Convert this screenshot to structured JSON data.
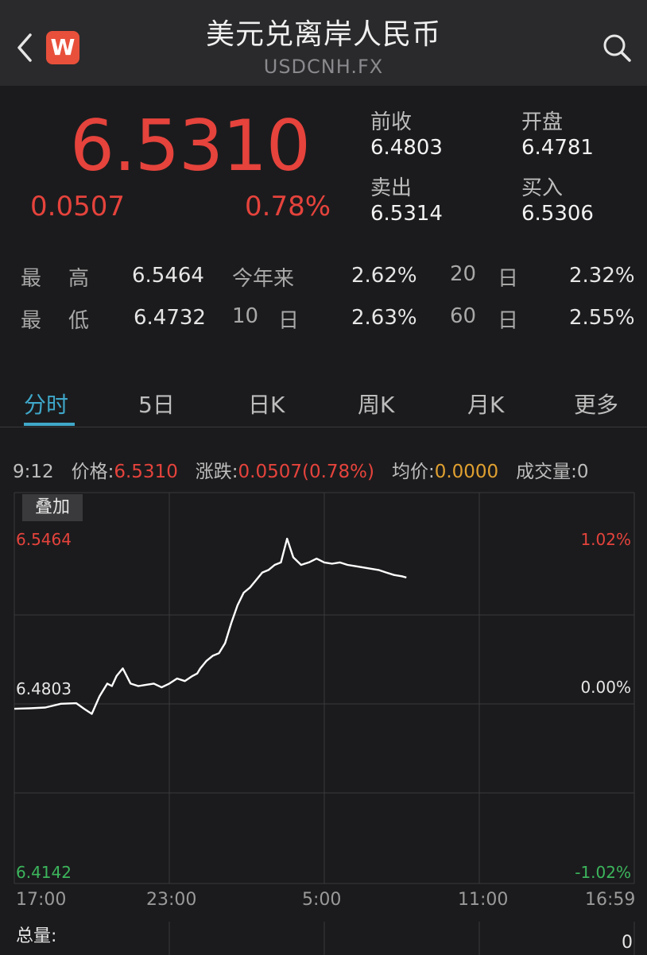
{
  "header": {
    "title": "美元兑离岸人民币",
    "symbol": "USDCNH.FX",
    "logo_letter": "W"
  },
  "quote": {
    "price": "6.5310",
    "change": "0.0507",
    "change_pct": "0.78%",
    "prev_close_label": "前收",
    "prev_close": "6.4803",
    "open_label": "开盘",
    "open": "6.4781",
    "sell_label": "卖出",
    "sell": "6.5314",
    "buy_label": "买入",
    "buy": "6.5306"
  },
  "stats": {
    "high_label_1": "最",
    "high_label_2": "高",
    "high": "6.5464",
    "low_label_1": "最",
    "low_label_2": "低",
    "low": "6.4732",
    "ytd_label": "今年来",
    "ytd": "2.62%",
    "d10_num": "10",
    "d10_unit": "日",
    "d10": "2.63%",
    "d20_num": "20",
    "d20_unit": "日",
    "d20": "2.32%",
    "d60_num": "60",
    "d60_unit": "日",
    "d60": "2.55%"
  },
  "tabs": [
    "分时",
    "5日",
    "日K",
    "周K",
    "月K",
    "更多"
  ],
  "info_bar": {
    "time": "9:12",
    "price_label": "价格:",
    "price": "6.5310",
    "change_label": "涨跌:",
    "change": "0.0507(0.78%)",
    "avg_label": "均价:",
    "avg": "0.0000",
    "volume_label": "成交量:",
    "volume": "0"
  },
  "overlay_label": "叠加",
  "colors": {
    "up": "#e5433c",
    "down": "#3cb55c",
    "accent": "#3fa7c9",
    "neutral": "#e6e6e6"
  },
  "chart_data": {
    "type": "line",
    "y_left_ticks": [
      "6.5464",
      "6.4803",
      "6.4142"
    ],
    "y_right_ticks": [
      "1.02%",
      "0.00%",
      "-1.02%"
    ],
    "x_ticks": [
      "17:00",
      "23:00",
      "5:00",
      "11:00",
      "16:59"
    ],
    "ylim": [
      6.4142,
      6.5464
    ],
    "grid": true,
    "series": [
      {
        "x_index": [
          0,
          10,
          20,
          30,
          40,
          45,
          50,
          55,
          60,
          63,
          66,
          70,
          75,
          80,
          85,
          90,
          95,
          100,
          105,
          110,
          115,
          118,
          120,
          124,
          128,
          132,
          136,
          140,
          144,
          148,
          152,
          156,
          160,
          164,
          168,
          172,
          176,
          180,
          185,
          190,
          195,
          200,
          205,
          210,
          215,
          220,
          225,
          230,
          235,
          240,
          245,
          250,
          253
        ],
        "values": [
          6.479,
          6.4792,
          6.4795,
          6.481,
          6.4812,
          6.479,
          6.477,
          6.484,
          6.489,
          6.488,
          6.492,
          6.495,
          6.489,
          6.488,
          6.4885,
          6.489,
          6.4875,
          6.489,
          6.491,
          6.49,
          6.492,
          6.493,
          6.495,
          6.498,
          6.5,
          6.501,
          6.505,
          6.513,
          6.52,
          6.525,
          6.527,
          6.53,
          6.533,
          6.534,
          6.536,
          6.537,
          6.5464,
          6.539,
          6.536,
          6.537,
          6.5385,
          6.537,
          6.5365,
          6.537,
          6.536,
          6.5355,
          6.535,
          6.5345,
          6.534,
          6.533,
          6.532,
          6.5315,
          6.531
        ]
      }
    ],
    "total_volume_label": "总量:",
    "total_volume": "0"
  }
}
